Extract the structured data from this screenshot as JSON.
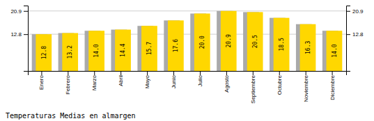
{
  "chart_data": {
    "type": "bar",
    "title": "Temperaturas Medias en almargen",
    "categories": [
      "Enero",
      "Febrero",
      "Marzo",
      "Abril",
      "Mayo",
      "Junio",
      "Julio",
      "Agosto",
      "Septiembre",
      "Octubre",
      "Noviembre",
      "Diciembre"
    ],
    "series": [
      {
        "color": "#AAAAAA",
        "values": [
          12.8,
          13.2,
          14.0,
          14.4,
          15.7,
          17.6,
          20.0,
          20.9,
          20.5,
          18.5,
          16.3,
          14.0
        ]
      },
      {
        "color": "#FFD700",
        "values": [
          12.8,
          13.2,
          14.0,
          14.4,
          15.7,
          17.6,
          20.0,
          20.9,
          20.5,
          18.5,
          16.3,
          14.0
        ],
        "value_labels": [
          "12.8",
          "13.2",
          "14.0",
          "14.4",
          "15.7",
          "17.6",
          "20.0",
          "20.9",
          "20.5",
          "18.5",
          "16.3",
          "14.0"
        ]
      }
    ],
    "data_labels": true,
    "ylim": [
      0,
      22.781
    ],
    "yticks": [
      12.8,
      20.9
    ],
    "y2lim": [
      0,
      22.781
    ],
    "y2ticks": [
      12.8,
      20.9
    ],
    "grid": true
  }
}
